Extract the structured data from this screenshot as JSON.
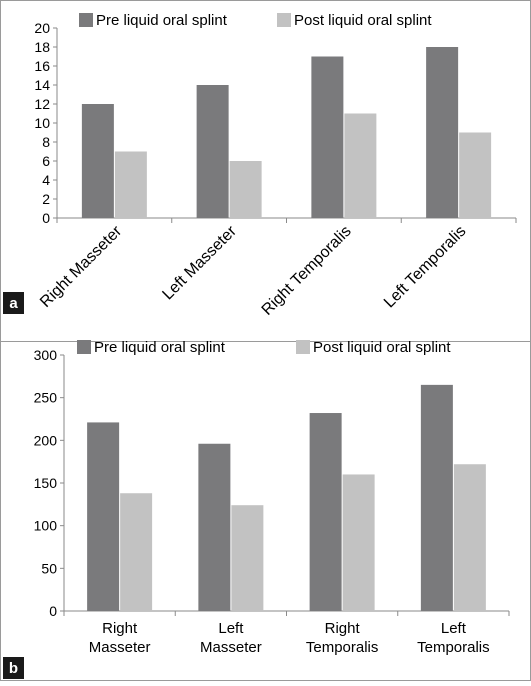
{
  "chart_data": [
    {
      "type": "bar",
      "panel_label": "a",
      "categories": [
        "Right Masseter",
        "Left Masseter",
        "Right Temporalis",
        "Left Temporalis"
      ],
      "series": [
        {
          "name": "Pre liquid oral splint",
          "values": [
            12,
            14,
            17,
            18
          ]
        },
        {
          "name": "Post liquid oral splint",
          "values": [
            7,
            6,
            11,
            9
          ]
        }
      ],
      "y_ticks": [
        "0",
        "2",
        "4",
        "6",
        "8",
        "10",
        "12",
        "14",
        "16",
        "18",
        "20"
      ],
      "ylim": [
        0,
        20
      ],
      "legend_position": "top",
      "tick_label_style": "rotated",
      "grid": false
    },
    {
      "type": "bar",
      "panel_label": "b",
      "categories": [
        [
          "Right",
          "Masseter"
        ],
        [
          "Left",
          "Masseter"
        ],
        [
          "Right",
          "Temporalis"
        ],
        [
          "Left",
          "Temporalis"
        ]
      ],
      "series": [
        {
          "name": "Pre liquid oral splint",
          "values": [
            221,
            196,
            232,
            265
          ]
        },
        {
          "name": "Post liquid oral splint",
          "values": [
            138,
            124,
            160,
            172
          ]
        }
      ],
      "y_ticks": [
        "0",
        "50",
        "100",
        "150",
        "200",
        "250",
        "300"
      ],
      "ylim": [
        0,
        300
      ],
      "legend_position": "top",
      "tick_label_style": "horizontal",
      "grid": false
    }
  ],
  "colors": {
    "pre": "#7a7a7c",
    "post": "#c2c2c2",
    "axis": "#8a8a8a",
    "border": "#9a9a9a",
    "label_bg": "#1a1a1a"
  }
}
